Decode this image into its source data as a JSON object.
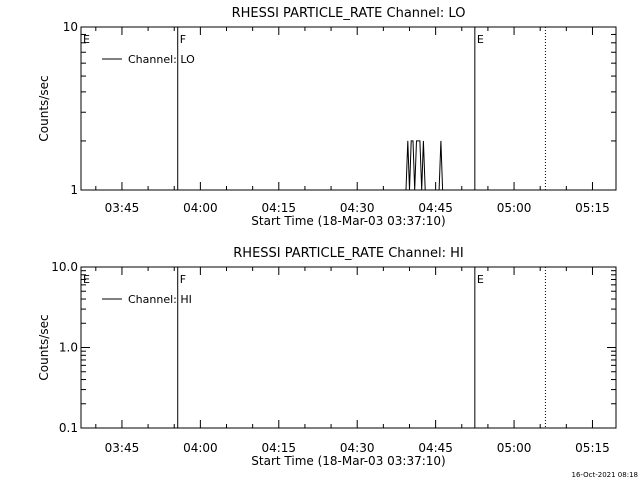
{
  "chart_data": [
    {
      "type": "line",
      "title": "RHESSI PARTICLE_RATE Channel: LO",
      "xlabel": "Start Time (18-Mar-03 03:37:10)",
      "ylabel": "Counts/sec",
      "yscale": "log",
      "xlim": [
        "03:37:10",
        "05:19:30"
      ],
      "ylim": [
        1,
        10
      ],
      "xticks": [
        "03:45",
        "04:00",
        "04:15",
        "04:30",
        "04:45",
        "05:00",
        "05:15"
      ],
      "yticks": [
        "1",
        "10"
      ],
      "legend": {
        "position": "top-left",
        "entries": [
          "Channel: LO"
        ]
      },
      "grid": false,
      "markers": [
        {
          "label": "E",
          "time": "03:37:10",
          "style": "solid"
        },
        {
          "label": "F",
          "time": "03:55:40",
          "style": "solid"
        },
        {
          "label": "E",
          "time": "04:52:30",
          "style": "solid"
        },
        {
          "label": "",
          "time": "05:06:00",
          "style": "dotted"
        }
      ],
      "series": [
        {
          "name": "Channel: LO",
          "x": [
            "04:39:20",
            "04:39:40",
            "04:40:00",
            "04:40:20",
            "04:40:40",
            "04:41:00",
            "04:41:20",
            "04:41:40",
            "04:42:00",
            "04:42:20",
            "04:42:40",
            "04:43:00",
            "04:43:20",
            "04:45:40",
            "04:46:00",
            "04:46:20"
          ],
          "y": [
            1,
            2,
            1,
            2,
            2,
            1,
            2,
            2,
            2,
            1,
            2,
            1,
            1,
            1,
            2,
            1
          ]
        }
      ]
    },
    {
      "type": "line",
      "title": "RHESSI PARTICLE_RATE Channel: HI",
      "xlabel": "Start Time (18-Mar-03 03:37:10)",
      "ylabel": "Counts/sec",
      "yscale": "log",
      "xlim": [
        "03:37:10",
        "05:19:30"
      ],
      "ylim": [
        0.1,
        10
      ],
      "xticks": [
        "03:45",
        "04:00",
        "04:15",
        "04:30",
        "04:45",
        "05:00",
        "05:15"
      ],
      "yticks": [
        "0.1",
        "1.0",
        "10.0"
      ],
      "legend": {
        "position": "top-left",
        "entries": [
          "Channel: HI"
        ]
      },
      "grid": false,
      "markers": [
        {
          "label": "E",
          "time": "03:37:10",
          "style": "solid"
        },
        {
          "label": "F",
          "time": "03:55:40",
          "style": "solid"
        },
        {
          "label": "E",
          "time": "04:52:30",
          "style": "solid"
        },
        {
          "label": "",
          "time": "05:06:00",
          "style": "dotted"
        }
      ],
      "series": [
        {
          "name": "Channel: HI",
          "x": [],
          "y": []
        }
      ]
    }
  ],
  "footer": {
    "timestamp": "16-Oct-2021 08:18"
  }
}
